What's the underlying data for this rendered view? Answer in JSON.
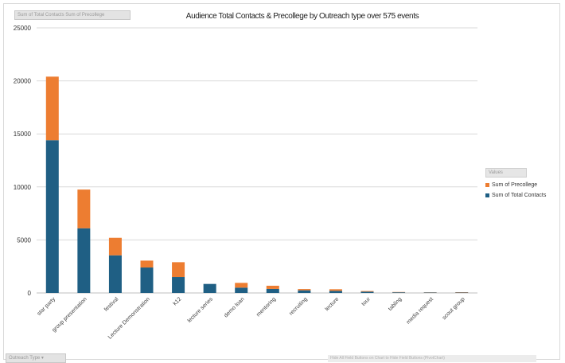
{
  "field_buttons": {
    "values_area": "Sum of Total Contacts  Sum of Precollege",
    "axis_field": "Outreach Type ▾"
  },
  "footnote": "Hide All Field Buttons on Chart to Hide Field Buttons (PivotChart)",
  "legend": {
    "header": "Values",
    "items": [
      {
        "label": "Sum of Precollege",
        "color": "#ed7d31"
      },
      {
        "label": "Sum of Total Contacts",
        "color": "#1f5f84"
      }
    ]
  },
  "chart_data": {
    "type": "bar",
    "stacked": true,
    "title": "Audience Total Contacts & Precollege by Outreach type over 575 events",
    "xlabel": "",
    "ylabel": "",
    "ylim": [
      0,
      25000
    ],
    "yticks": [
      0,
      5000,
      10000,
      15000,
      20000,
      25000
    ],
    "grid": true,
    "legend_position": "right",
    "categories": [
      "star party",
      "group presentation",
      "festival",
      "Lecture Demonstration",
      "k12",
      "lecture series",
      "demo loan",
      "mentoring",
      "recruiting",
      "lecture",
      "tour",
      "tabling",
      "media request",
      "scout group"
    ],
    "series": [
      {
        "name": "Sum of Total Contacts",
        "color": "#1f5f84",
        "values": [
          14400,
          6100,
          3550,
          2400,
          1500,
          850,
          500,
          380,
          250,
          200,
          120,
          60,
          40,
          40
        ]
      },
      {
        "name": "Sum of Precollege",
        "color": "#ed7d31",
        "values": [
          6000,
          3650,
          1650,
          650,
          1400,
          0,
          450,
          300,
          120,
          150,
          60,
          30,
          20,
          30
        ]
      }
    ]
  }
}
